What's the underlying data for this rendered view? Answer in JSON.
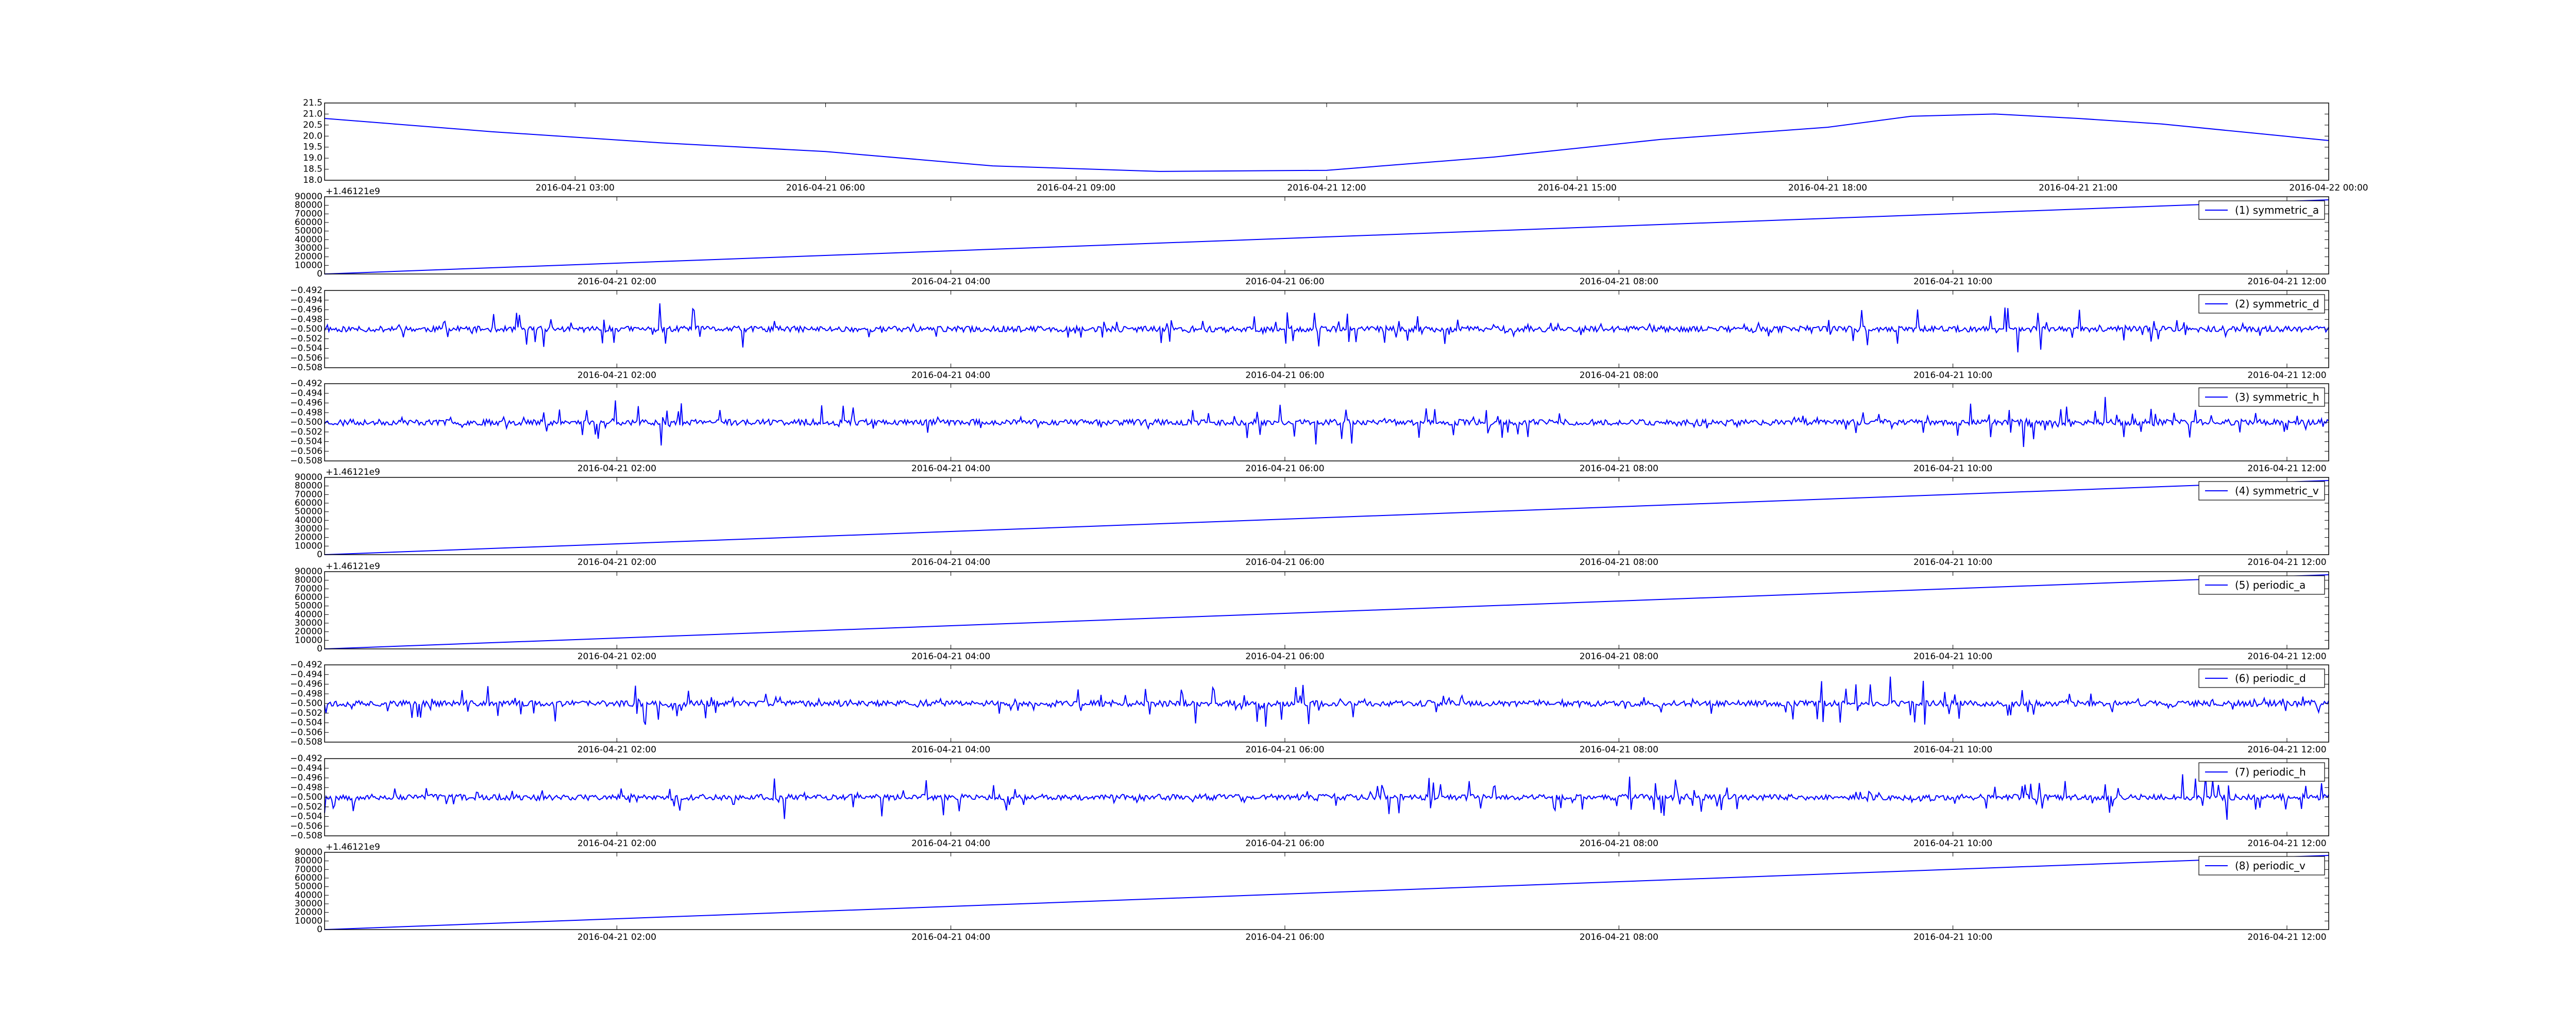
{
  "chart_data": [
    {
      "type": "line",
      "line_color": "#0000ff",
      "ylim": [
        18.0,
        21.5
      ],
      "yticks": [
        18.0,
        18.5,
        19.0,
        19.5,
        20.0,
        20.5,
        21.0,
        21.5
      ],
      "y_tick_labels": [
        "18.0",
        "18.5",
        "19.0",
        "19.5",
        "20.0",
        "20.5",
        "21.0",
        "21.5"
      ],
      "xlim": [
        "2016-04-21 00:00",
        "2016-04-22 00:00"
      ],
      "x_tick_values": [
        "2016-04-21 03:00",
        "2016-04-21 06:00",
        "2016-04-21 09:00",
        "2016-04-21 12:00",
        "2016-04-21 15:00",
        "2016-04-21 18:00",
        "2016-04-21 21:00",
        "2016-04-22 00:00"
      ],
      "x_tick_labels": [
        "2016-04-21 03:00",
        "2016-04-21 06:00",
        "2016-04-21 09:00",
        "2016-04-21 12:00",
        "2016-04-21 15:00",
        "2016-04-21 18:00",
        "2016-04-21 21:00",
        "2016-04-22 00:00"
      ],
      "x": [
        "2016-04-21 00:00",
        "2016-04-21 02:00",
        "2016-04-21 04:00",
        "2016-04-21 06:00",
        "2016-04-21 08:00",
        "2016-04-21 10:00",
        "2016-04-21 12:00",
        "2016-04-21 14:00",
        "2016-04-21 16:00",
        "2016-04-21 18:00",
        "2016-04-21 19:00",
        "2016-04-21 20:00",
        "2016-04-21 21:00",
        "2016-04-21 22:00",
        "2016-04-22 00:00"
      ],
      "y": [
        20.8,
        20.2,
        19.7,
        19.3,
        18.65,
        18.4,
        18.45,
        19.05,
        19.85,
        20.4,
        20.9,
        21.0,
        20.8,
        20.55,
        19.8
      ],
      "offset_label": "",
      "legend": null
    },
    {
      "type": "line",
      "line_color": "#0000ff",
      "ylim": [
        0,
        90000
      ],
      "yticks": [
        0,
        10000,
        20000,
        30000,
        40000,
        50000,
        60000,
        70000,
        80000,
        90000
      ],
      "y_tick_labels": [
        "0",
        "10000",
        "20000",
        "30000",
        "40000",
        "50000",
        "60000",
        "70000",
        "80000",
        "90000"
      ],
      "xlim": [
        "2016-04-21 00:15",
        "2016-04-21 12:15"
      ],
      "x_tick_values": [
        "2016-04-21 02:00",
        "2016-04-21 04:00",
        "2016-04-21 06:00",
        "2016-04-21 08:00",
        "2016-04-21 10:00",
        "2016-04-21 12:00"
      ],
      "x_tick_labels": [
        "2016-04-21 02:00",
        "2016-04-21 04:00",
        "2016-04-21 06:00",
        "2016-04-21 08:00",
        "2016-04-21 10:00",
        "2016-04-21 12:00"
      ],
      "x": [
        "2016-04-21 00:15",
        "2016-04-21 12:15"
      ],
      "y": [
        0,
        86400
      ],
      "offset_label": "+1.46121e9",
      "legend": {
        "text": "(1) symmetric_a",
        "loc": "upper right"
      }
    },
    {
      "type": "line",
      "line_color": "#0000ff",
      "signal": "noise",
      "seed": 11,
      "center": -0.5,
      "ylim": [
        -0.508,
        -0.492
      ],
      "yticks": [
        -0.508,
        -0.506,
        -0.504,
        -0.502,
        -0.5,
        -0.498,
        -0.496,
        -0.494,
        -0.492
      ],
      "y_tick_labels": [
        "−0.508",
        "−0.506",
        "−0.504",
        "−0.502",
        "−0.500",
        "−0.498",
        "−0.496",
        "−0.494",
        "−0.492"
      ],
      "xlim": [
        "2016-04-21 00:15",
        "2016-04-21 12:15"
      ],
      "x_tick_values": [
        "2016-04-21 02:00",
        "2016-04-21 04:00",
        "2016-04-21 06:00",
        "2016-04-21 08:00",
        "2016-04-21 10:00",
        "2016-04-21 12:00"
      ],
      "x_tick_labels": [
        "2016-04-21 02:00",
        "2016-04-21 04:00",
        "2016-04-21 06:00",
        "2016-04-21 08:00",
        "2016-04-21 10:00",
        "2016-04-21 12:00"
      ],
      "offset_label": "",
      "legend": {
        "text": "(2) symmetric_d",
        "loc": "upper right"
      }
    },
    {
      "type": "line",
      "line_color": "#0000ff",
      "signal": "noise",
      "seed": 23,
      "center": -0.5,
      "ylim": [
        -0.508,
        -0.492
      ],
      "yticks": [
        -0.508,
        -0.506,
        -0.504,
        -0.502,
        -0.5,
        -0.498,
        -0.496,
        -0.494,
        -0.492
      ],
      "y_tick_labels": [
        "−0.508",
        "−0.506",
        "−0.504",
        "−0.502",
        "−0.500",
        "−0.498",
        "−0.496",
        "−0.494",
        "−0.492"
      ],
      "xlim": [
        "2016-04-21 00:15",
        "2016-04-21 12:15"
      ],
      "x_tick_values": [
        "2016-04-21 02:00",
        "2016-04-21 04:00",
        "2016-04-21 06:00",
        "2016-04-21 08:00",
        "2016-04-21 10:00",
        "2016-04-21 12:00"
      ],
      "x_tick_labels": [
        "2016-04-21 02:00",
        "2016-04-21 04:00",
        "2016-04-21 06:00",
        "2016-04-21 08:00",
        "2016-04-21 10:00",
        "2016-04-21 12:00"
      ],
      "offset_label": "",
      "legend": {
        "text": "(3) symmetric_h",
        "loc": "upper right"
      }
    },
    {
      "type": "line",
      "line_color": "#0000ff",
      "ylim": [
        0,
        90000
      ],
      "yticks": [
        0,
        10000,
        20000,
        30000,
        40000,
        50000,
        60000,
        70000,
        80000,
        90000
      ],
      "y_tick_labels": [
        "0",
        "10000",
        "20000",
        "30000",
        "40000",
        "50000",
        "60000",
        "70000",
        "80000",
        "90000"
      ],
      "xlim": [
        "2016-04-21 00:15",
        "2016-04-21 12:15"
      ],
      "x_tick_values": [
        "2016-04-21 02:00",
        "2016-04-21 04:00",
        "2016-04-21 06:00",
        "2016-04-21 08:00",
        "2016-04-21 10:00",
        "2016-04-21 12:00"
      ],
      "x_tick_labels": [
        "2016-04-21 02:00",
        "2016-04-21 04:00",
        "2016-04-21 06:00",
        "2016-04-21 08:00",
        "2016-04-21 10:00",
        "2016-04-21 12:00"
      ],
      "x": [
        "2016-04-21 00:15",
        "2016-04-21 12:15"
      ],
      "y": [
        0,
        86400
      ],
      "offset_label": "+1.46121e9",
      "legend": {
        "text": "(4) symmetric_v",
        "loc": "upper right"
      }
    },
    {
      "type": "line",
      "line_color": "#0000ff",
      "ylim": [
        0,
        90000
      ],
      "yticks": [
        0,
        10000,
        20000,
        30000,
        40000,
        50000,
        60000,
        70000,
        80000,
        90000
      ],
      "y_tick_labels": [
        "0",
        "10000",
        "20000",
        "30000",
        "40000",
        "50000",
        "60000",
        "70000",
        "80000",
        "90000"
      ],
      "xlim": [
        "2016-04-21 00:15",
        "2016-04-21 12:15"
      ],
      "x_tick_values": [
        "2016-04-21 02:00",
        "2016-04-21 04:00",
        "2016-04-21 06:00",
        "2016-04-21 08:00",
        "2016-04-21 10:00",
        "2016-04-21 12:00"
      ],
      "x_tick_labels": [
        "2016-04-21 02:00",
        "2016-04-21 04:00",
        "2016-04-21 06:00",
        "2016-04-21 08:00",
        "2016-04-21 10:00",
        "2016-04-21 12:00"
      ],
      "x": [
        "2016-04-21 00:15",
        "2016-04-21 12:15"
      ],
      "y": [
        0,
        86400
      ],
      "offset_label": "+1.46121e9",
      "legend": {
        "text": "(5) periodic_a",
        "loc": "upper right"
      }
    },
    {
      "type": "line",
      "line_color": "#0000ff",
      "signal": "noise",
      "seed": 37,
      "center": -0.5,
      "ylim": [
        -0.508,
        -0.492
      ],
      "yticks": [
        -0.508,
        -0.506,
        -0.504,
        -0.502,
        -0.5,
        -0.498,
        -0.496,
        -0.494,
        -0.492
      ],
      "y_tick_labels": [
        "−0.508",
        "−0.506",
        "−0.504",
        "−0.502",
        "−0.500",
        "−0.498",
        "−0.496",
        "−0.494",
        "−0.492"
      ],
      "xlim": [
        "2016-04-21 00:15",
        "2016-04-21 12:15"
      ],
      "x_tick_values": [
        "2016-04-21 02:00",
        "2016-04-21 04:00",
        "2016-04-21 06:00",
        "2016-04-21 08:00",
        "2016-04-21 10:00",
        "2016-04-21 12:00"
      ],
      "x_tick_labels": [
        "2016-04-21 02:00",
        "2016-04-21 04:00",
        "2016-04-21 06:00",
        "2016-04-21 08:00",
        "2016-04-21 10:00",
        "2016-04-21 12:00"
      ],
      "offset_label": "",
      "legend": {
        "text": "(6) periodic_d",
        "loc": "upper right"
      }
    },
    {
      "type": "line",
      "line_color": "#0000ff",
      "signal": "noise",
      "seed": 53,
      "center": -0.5,
      "ylim": [
        -0.508,
        -0.492
      ],
      "yticks": [
        -0.508,
        -0.506,
        -0.504,
        -0.502,
        -0.5,
        -0.498,
        -0.496,
        -0.494,
        -0.492
      ],
      "y_tick_labels": [
        "−0.508",
        "−0.506",
        "−0.504",
        "−0.502",
        "−0.500",
        "−0.498",
        "−0.496",
        "−0.494",
        "−0.492"
      ],
      "xlim": [
        "2016-04-21 00:15",
        "2016-04-21 12:15"
      ],
      "x_tick_values": [
        "2016-04-21 02:00",
        "2016-04-21 04:00",
        "2016-04-21 06:00",
        "2016-04-21 08:00",
        "2016-04-21 10:00",
        "2016-04-21 12:00"
      ],
      "x_tick_labels": [
        "2016-04-21 02:00",
        "2016-04-21 04:00",
        "2016-04-21 06:00",
        "2016-04-21 08:00",
        "2016-04-21 10:00",
        "2016-04-21 12:00"
      ],
      "offset_label": "",
      "legend": {
        "text": "(7) periodic_h",
        "loc": "upper right"
      }
    },
    {
      "type": "line",
      "line_color": "#0000ff",
      "ylim": [
        0,
        90000
      ],
      "yticks": [
        0,
        10000,
        20000,
        30000,
        40000,
        50000,
        60000,
        70000,
        80000,
        90000
      ],
      "y_tick_labels": [
        "0",
        "10000",
        "20000",
        "30000",
        "40000",
        "50000",
        "60000",
        "70000",
        "80000",
        "90000"
      ],
      "xlim": [
        "2016-04-21 00:15",
        "2016-04-21 12:15"
      ],
      "x_tick_values": [
        "2016-04-21 02:00",
        "2016-04-21 04:00",
        "2016-04-21 06:00",
        "2016-04-21 08:00",
        "2016-04-21 10:00",
        "2016-04-21 12:00"
      ],
      "x_tick_labels": [
        "2016-04-21 02:00",
        "2016-04-21 04:00",
        "2016-04-21 06:00",
        "2016-04-21 08:00",
        "2016-04-21 10:00",
        "2016-04-21 12:00"
      ],
      "x": [
        "2016-04-21 00:15",
        "2016-04-21 12:15"
      ],
      "y": [
        0,
        86400
      ],
      "offset_label": "+1.46121e9",
      "legend": {
        "text": "(8) periodic_v",
        "loc": "upper right"
      }
    }
  ]
}
